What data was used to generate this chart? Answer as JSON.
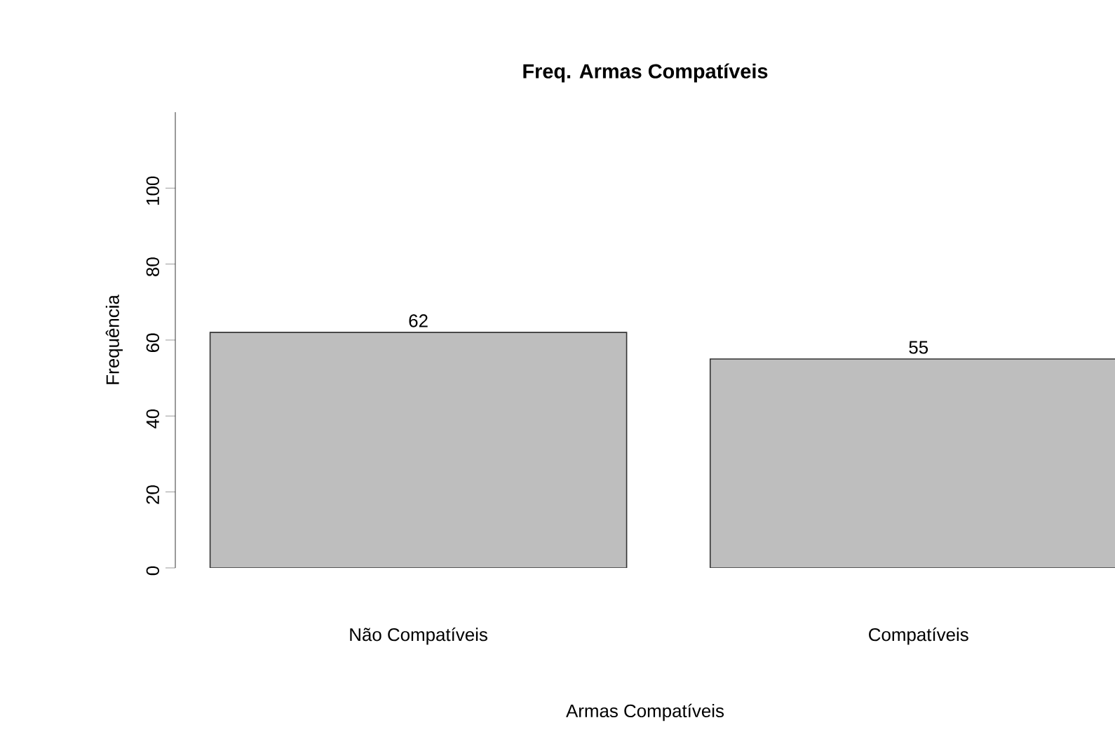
{
  "chart_data": {
    "type": "bar",
    "title": "Freq. Armas Compatíveis",
    "xlabel": "Armas Compatíveis",
    "ylabel": "Frequência",
    "categories": [
      "Não Compatíveis",
      "Compatíveis"
    ],
    "values": [
      62,
      55
    ],
    "color": "#bebebe",
    "ylim": [
      0,
      120
    ],
    "yticks": [
      0,
      20,
      40,
      60,
      80,
      100
    ],
    "grid": false,
    "data_labels": true
  }
}
